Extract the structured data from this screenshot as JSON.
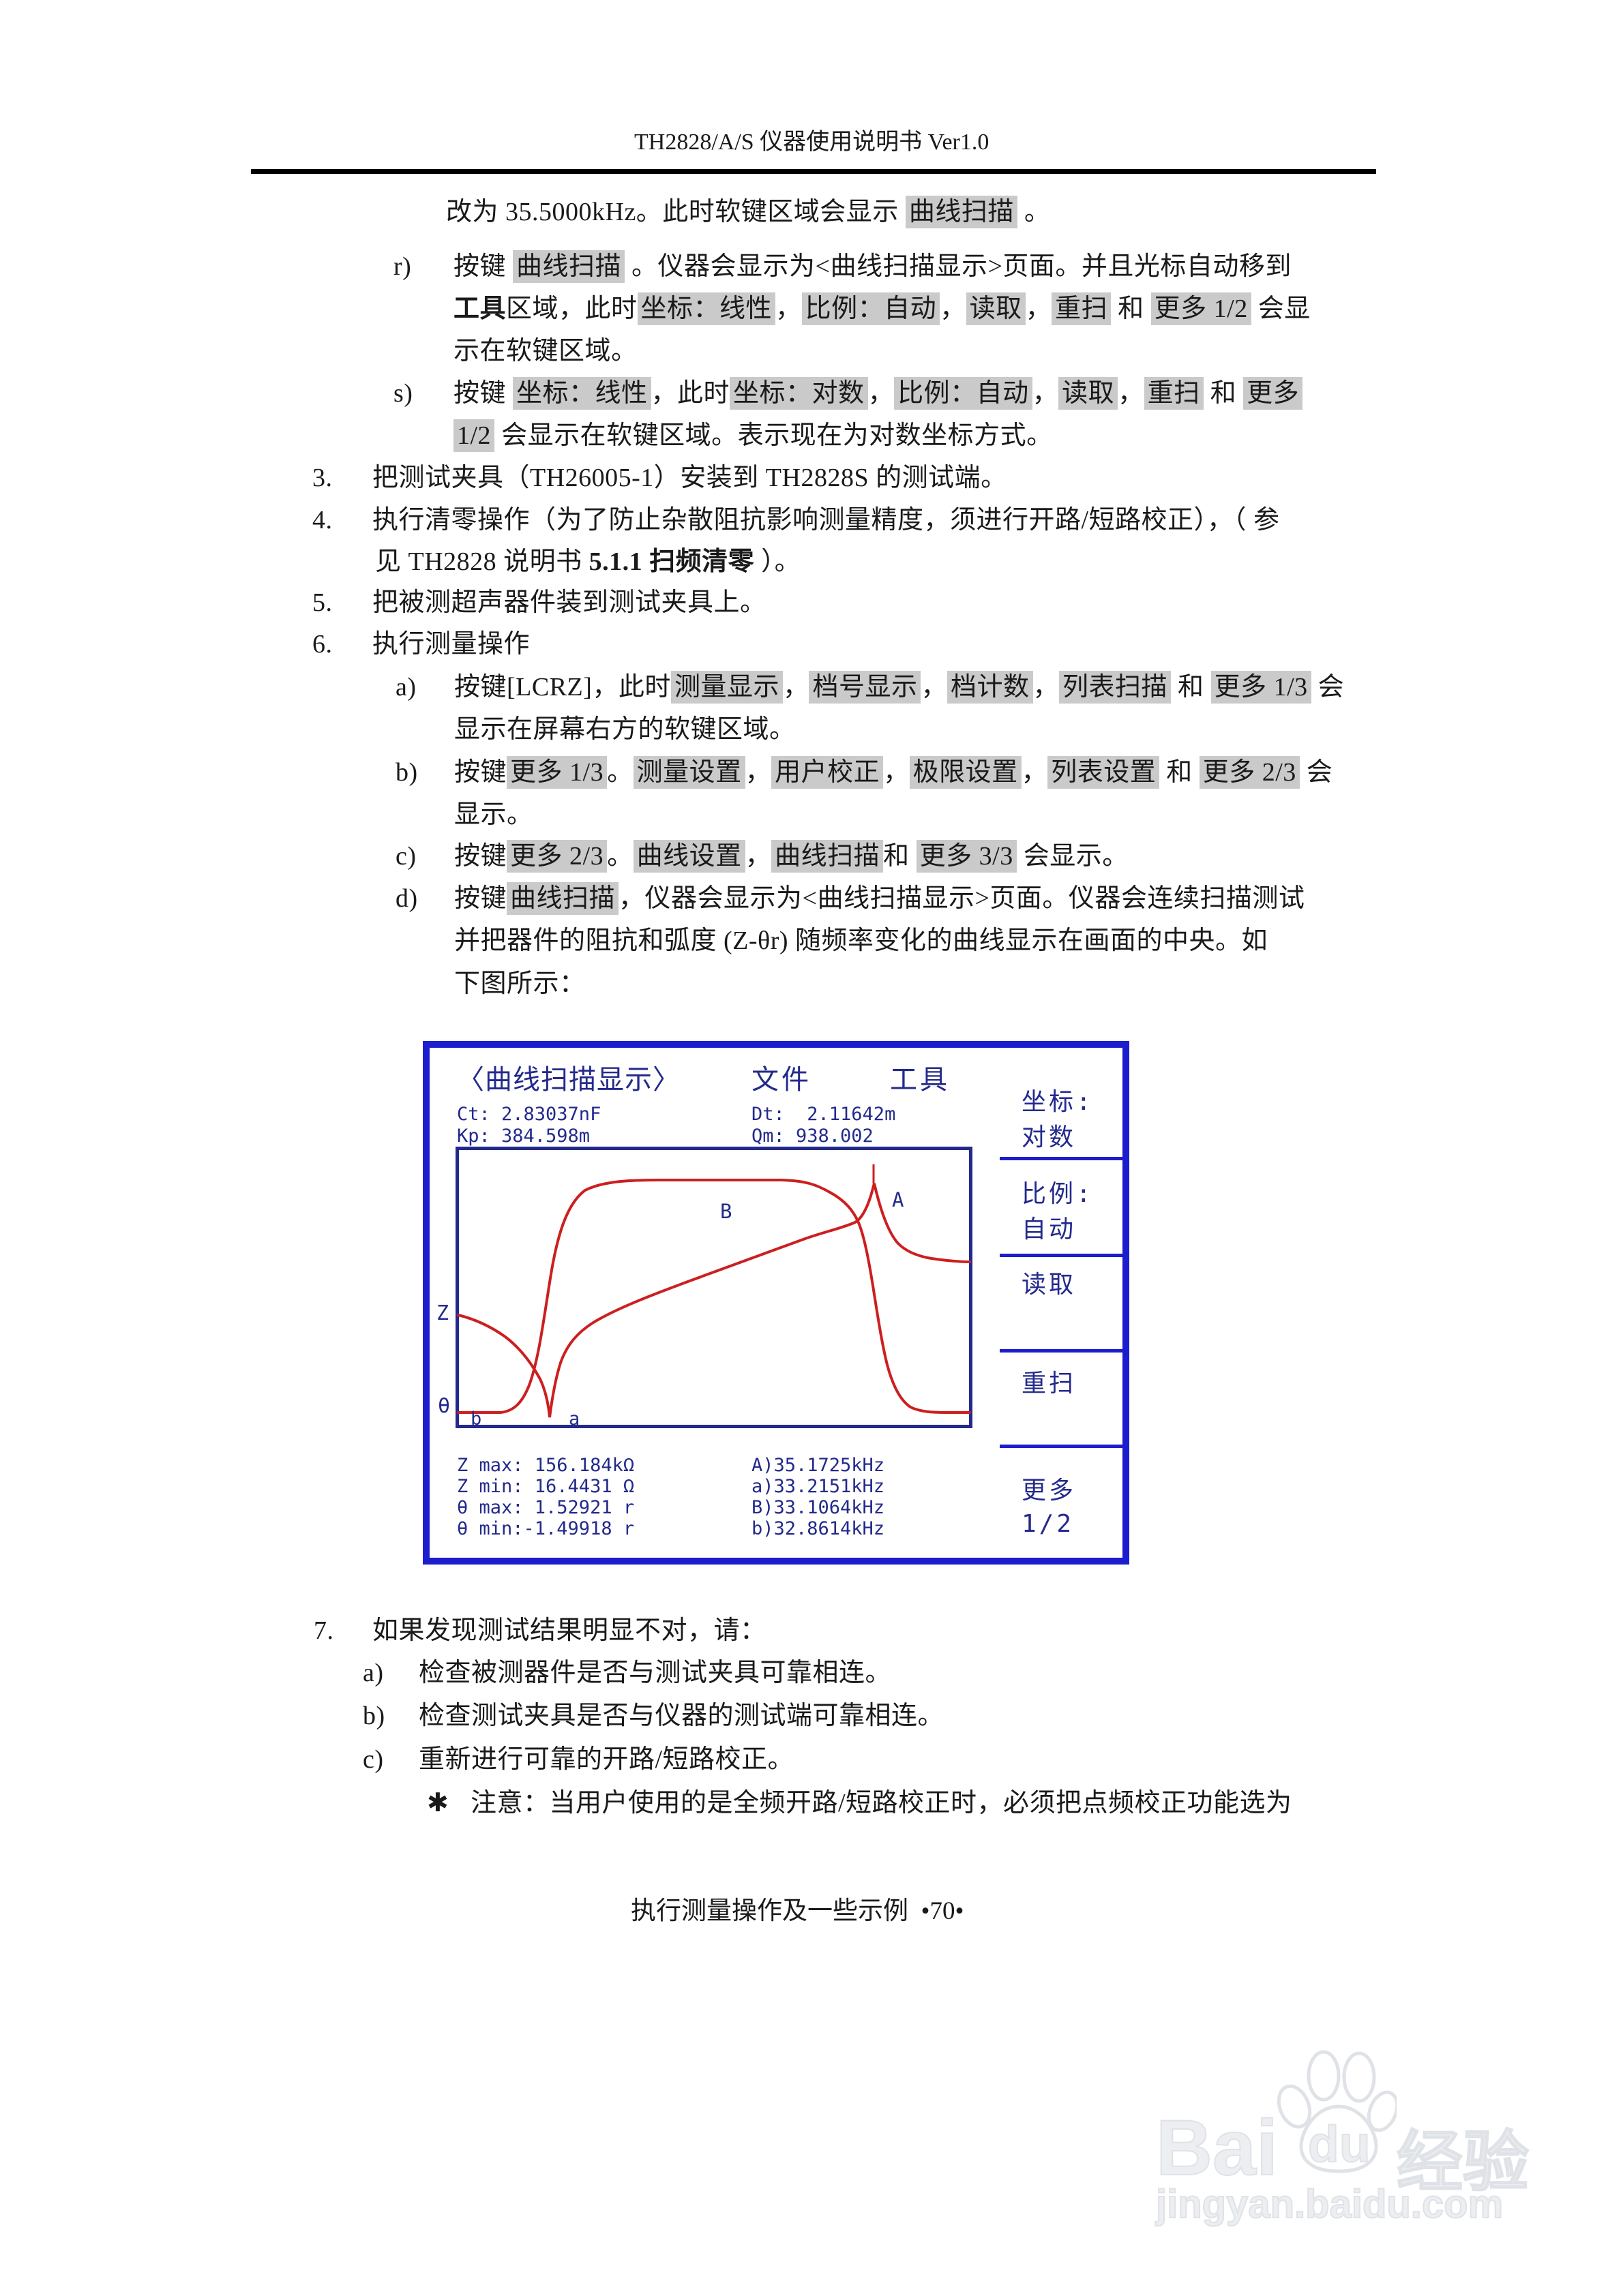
{
  "page": {
    "header_title": "TH2828/A/S 仪器使用说明书 Ver1.0",
    "footer": "执行测量操作及一些示例  •70•"
  },
  "colors": {
    "screen_border_blue": "#1d1dd0",
    "screen_text_navy": "#232a8c",
    "curve_red": "#cc1f1f",
    "softkey_highlight_gray": "#cacaca"
  },
  "doc": {
    "lines": [
      {
        "marker": "",
        "segments": [
          {
            "t": "改为 35.5000kHz。此时软键区域会显示 "
          },
          {
            "t": "曲线扫描",
            "h": 1
          },
          {
            "t": " 。"
          }
        ]
      },
      {
        "marker": "r)",
        "segments": [
          {
            "t": "按键 "
          },
          {
            "t": "曲线扫描",
            "h": 1
          },
          {
            "t": " 。仪器会显示为<曲线扫描显示>页面。并且光标自动移到"
          }
        ]
      },
      {
        "marker": "",
        "segments": [
          {
            "t": "工具",
            "b": 1
          },
          {
            "t": "区域，此时"
          },
          {
            "t": "坐标：线性",
            "h": 1
          },
          {
            "t": "，"
          },
          {
            "t": "比例：自动",
            "h": 1
          },
          {
            "t": "，"
          },
          {
            "t": "读取",
            "h": 1
          },
          {
            "t": "，"
          },
          {
            "t": "重扫",
            "h": 1
          },
          {
            "t": " 和 "
          },
          {
            "t": "更多 1/2",
            "h": 1
          },
          {
            "t": " 会显"
          }
        ]
      },
      {
        "marker": "",
        "segments": [
          {
            "t": "示在软键区域。"
          }
        ]
      },
      {
        "marker": "s)",
        "segments": [
          {
            "t": "按键 "
          },
          {
            "t": "坐标：线性",
            "h": 1
          },
          {
            "t": "，此时"
          },
          {
            "t": "坐标：对数",
            "h": 1
          },
          {
            "t": "，"
          },
          {
            "t": "比例：自动",
            "h": 1
          },
          {
            "t": "，"
          },
          {
            "t": "读取",
            "h": 1
          },
          {
            "t": "，"
          },
          {
            "t": "重扫",
            "h": 1
          },
          {
            "t": " 和 "
          },
          {
            "t": "更多",
            "h": 1
          }
        ]
      },
      {
        "marker": "",
        "segments": [
          {
            "t": "1/2",
            "h": 1
          },
          {
            "t": " 会显示在软键区域。表示现在为对数坐标方式。"
          }
        ]
      },
      {
        "marker": "3.",
        "segments": [
          {
            "t": "把测试夹具（TH26005-1）安装到 TH2828S 的测试端。"
          }
        ]
      },
      {
        "marker": "4.",
        "segments": [
          {
            "t": "执行清零操作（为了防止杂散阻抗影响测量精度，须进行开路/短路校正），（ 参"
          }
        ]
      },
      {
        "marker": "",
        "segments": [
          {
            "t": "见 TH2828 说明书 "
          },
          {
            "t": "5.1.1 扫频清零",
            "b": 1
          },
          {
            "t": " ）。"
          }
        ]
      },
      {
        "marker": "5.",
        "segments": [
          {
            "t": "把被测超声器件装到测试夹具上。"
          }
        ]
      },
      {
        "marker": "6.",
        "segments": [
          {
            "t": "执行测量操作"
          }
        ]
      },
      {
        "marker": "a)",
        "segments": [
          {
            "t": "按键[LCRZ]，此时"
          },
          {
            "t": "测量显示",
            "h": 1
          },
          {
            "t": "，"
          },
          {
            "t": "档号显示",
            "h": 1
          },
          {
            "t": "，"
          },
          {
            "t": "档计数",
            "h": 1
          },
          {
            "t": "，"
          },
          {
            "t": "列表扫描",
            "h": 1
          },
          {
            "t": " 和 "
          },
          {
            "t": "更多 1/3",
            "h": 1
          },
          {
            "t": " 会"
          }
        ]
      },
      {
        "marker": "",
        "segments": [
          {
            "t": "显示在屏幕右方的软键区域。"
          }
        ]
      },
      {
        "marker": "b)",
        "segments": [
          {
            "t": "按键"
          },
          {
            "t": "更多 1/3",
            "h": 1
          },
          {
            "t": "。"
          },
          {
            "t": "测量设置",
            "h": 1
          },
          {
            "t": "，"
          },
          {
            "t": "用户校正",
            "h": 1
          },
          {
            "t": "，"
          },
          {
            "t": "极限设置",
            "h": 1
          },
          {
            "t": "，"
          },
          {
            "t": "列表设置",
            "h": 1
          },
          {
            "t": " 和 "
          },
          {
            "t": "更多 2/3",
            "h": 1
          },
          {
            "t": " 会"
          }
        ]
      },
      {
        "marker": "",
        "segments": [
          {
            "t": "显示。"
          }
        ]
      },
      {
        "marker": "c)",
        "segments": [
          {
            "t": "按键"
          },
          {
            "t": "更多 2/3",
            "h": 1
          },
          {
            "t": "。"
          },
          {
            "t": "曲线设置",
            "h": 1
          },
          {
            "t": "，"
          },
          {
            "t": "曲线扫描",
            "h": 1
          },
          {
            "t": "和 "
          },
          {
            "t": "更多 3/3",
            "h": 1
          },
          {
            "t": " 会显示。"
          }
        ]
      },
      {
        "marker": "d)",
        "segments": [
          {
            "t": "按键"
          },
          {
            "t": "曲线扫描",
            "h": 1
          },
          {
            "t": "，仪器会显示为<曲线扫描显示>页面。仪器会连续扫描测试"
          }
        ]
      },
      {
        "marker": "",
        "segments": [
          {
            "t": "并把器件的阻抗和弧度 (Z-θr) 随频率变化的曲线显示在画面的中央。如"
          }
        ]
      },
      {
        "marker": "",
        "segments": [
          {
            "t": "下图所示："
          }
        ]
      },
      {
        "marker": "7.",
        "segments": [
          {
            "t": "如果发现测试结果明显不对，请："
          }
        ]
      },
      {
        "marker": "a)",
        "segments": [
          {
            "t": "检查被测器件是否与测试夹具可靠相连。"
          }
        ]
      },
      {
        "marker": "b)",
        "segments": [
          {
            "t": "检查测试夹具是否与仪器的测试端可靠相连。"
          }
        ]
      },
      {
        "marker": "c)",
        "segments": [
          {
            "t": "重新进行可靠的开路/短路校正。"
          }
        ]
      },
      {
        "marker": "✱",
        "segments": [
          {
            "t": "注意：当用户使用的是全频开路/短路校正时，必须把点频校正功能选为"
          }
        ]
      }
    ]
  },
  "screen": {
    "title": "〈曲线扫描显示〉",
    "menu_file": "文件",
    "menu_tools": "工具",
    "readouts": {
      "ct": "Ct: 2.83037nF",
      "dt": "Dt:  2.11642m",
      "kp": "Kp: 384.598m",
      "qm": "Qm: 938.002"
    },
    "softkeys": [
      {
        "line1": "坐标:",
        "line2": "对数"
      },
      {
        "line1": "比例:",
        "line2": "自动"
      },
      {
        "line1": "读取",
        "line2": ""
      },
      {
        "line1": "重扫",
        "line2": ""
      },
      {
        "line1": "更多",
        "line2": "1/2"
      }
    ],
    "plot": {
      "y_axis_label": "Z",
      "x_axis_label": "θ",
      "marker_A": "A",
      "marker_B": "B",
      "marker_a": "a",
      "marker_b": "b"
    },
    "measurements": [
      {
        "left": "Z max: 156.184kΩ",
        "right": "A)35.1725kHz"
      },
      {
        "left": "Z min: 16.4431 Ω",
        "right": "a)33.2151kHz"
      },
      {
        "left": "θ max: 1.52921 r",
        "right": "B)33.1064kHz"
      },
      {
        "left": "θ min:-1.49918 r",
        "right": "b)32.8614kHz"
      }
    ]
  },
  "watermark": {
    "part1": "Bai",
    "part2": "du",
    "brand": "经验",
    "url": "jingyan.baidu.com"
  }
}
